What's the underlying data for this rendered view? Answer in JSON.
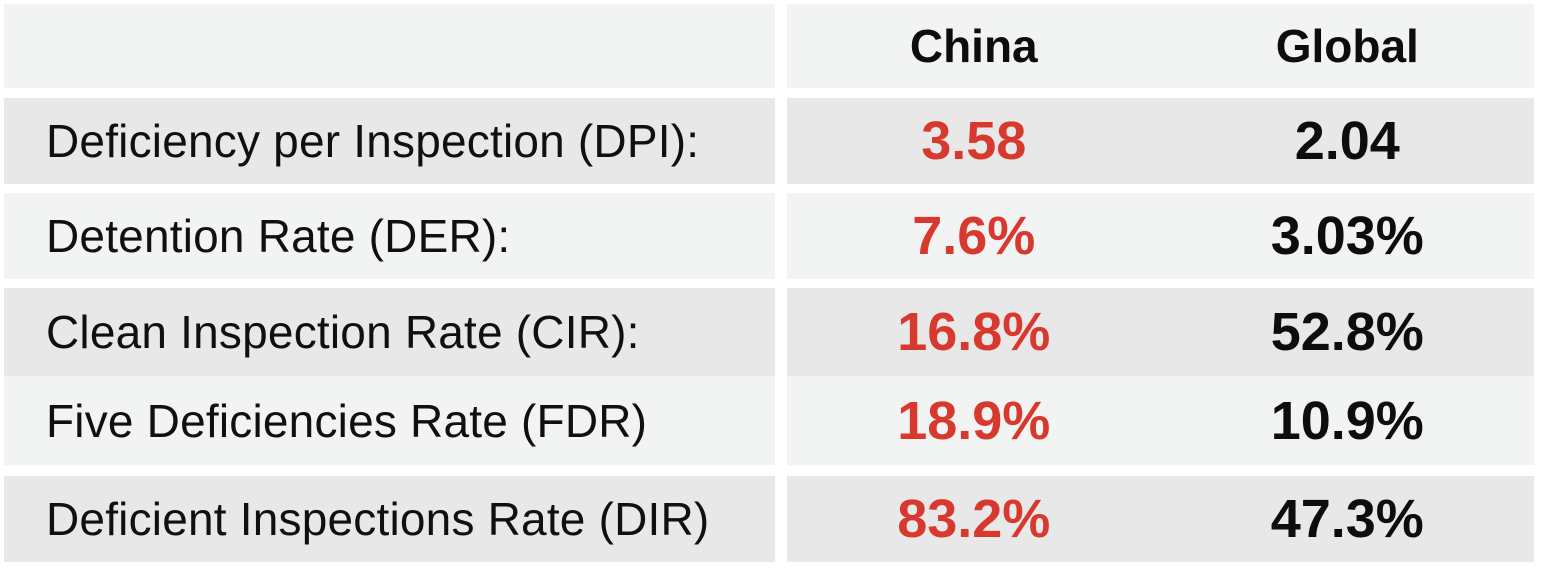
{
  "table": {
    "columns": {
      "china": "China",
      "global": "Global"
    },
    "rows": [
      {
        "label": "Deficiency per Inspection (DPI):",
        "china": "3.58",
        "global": "2.04"
      },
      {
        "label": "Detention Rate (DER):",
        "china": "7.6%",
        "global": "3.03%"
      },
      {
        "label": "Clean Inspection Rate (CIR):",
        "china": "16.8%",
        "global": "52.8%"
      },
      {
        "label": "Five Deficiencies Rate (FDR)",
        "china": "18.9%",
        "global": "10.9%"
      },
      {
        "label": "Deficient Inspections Rate (DIR)",
        "china": "83.2%",
        "global": "47.3%"
      }
    ],
    "colors": {
      "china_value": "#d8392f",
      "global_value": "#0d0d0d",
      "row_light": "#f2f3f3",
      "row_dark": "#e8e8e8",
      "background": "#ffffff"
    }
  },
  "chart_data": {
    "type": "table",
    "title": "",
    "categories": [
      "Deficiency per Inspection (DPI)",
      "Detention Rate (DER)",
      "Clean Inspection Rate (CIR)",
      "Five Deficiencies Rate (FDR)",
      "Deficient Inspections Rate (DIR)"
    ],
    "series": [
      {
        "name": "China",
        "values": [
          3.58,
          7.6,
          16.8,
          18.9,
          83.2
        ],
        "display": [
          "3.58",
          "7.6%",
          "16.8%",
          "18.9%",
          "83.2%"
        ]
      },
      {
        "name": "Global",
        "values": [
          2.04,
          3.03,
          52.8,
          10.9,
          47.3
        ],
        "display": [
          "2.04",
          "3.03%",
          "52.8%",
          "10.9%",
          "47.3%"
        ]
      }
    ],
    "legend_position": "top",
    "notes": "China values highlighted in red; rows banded in alternating light/dark gray"
  }
}
